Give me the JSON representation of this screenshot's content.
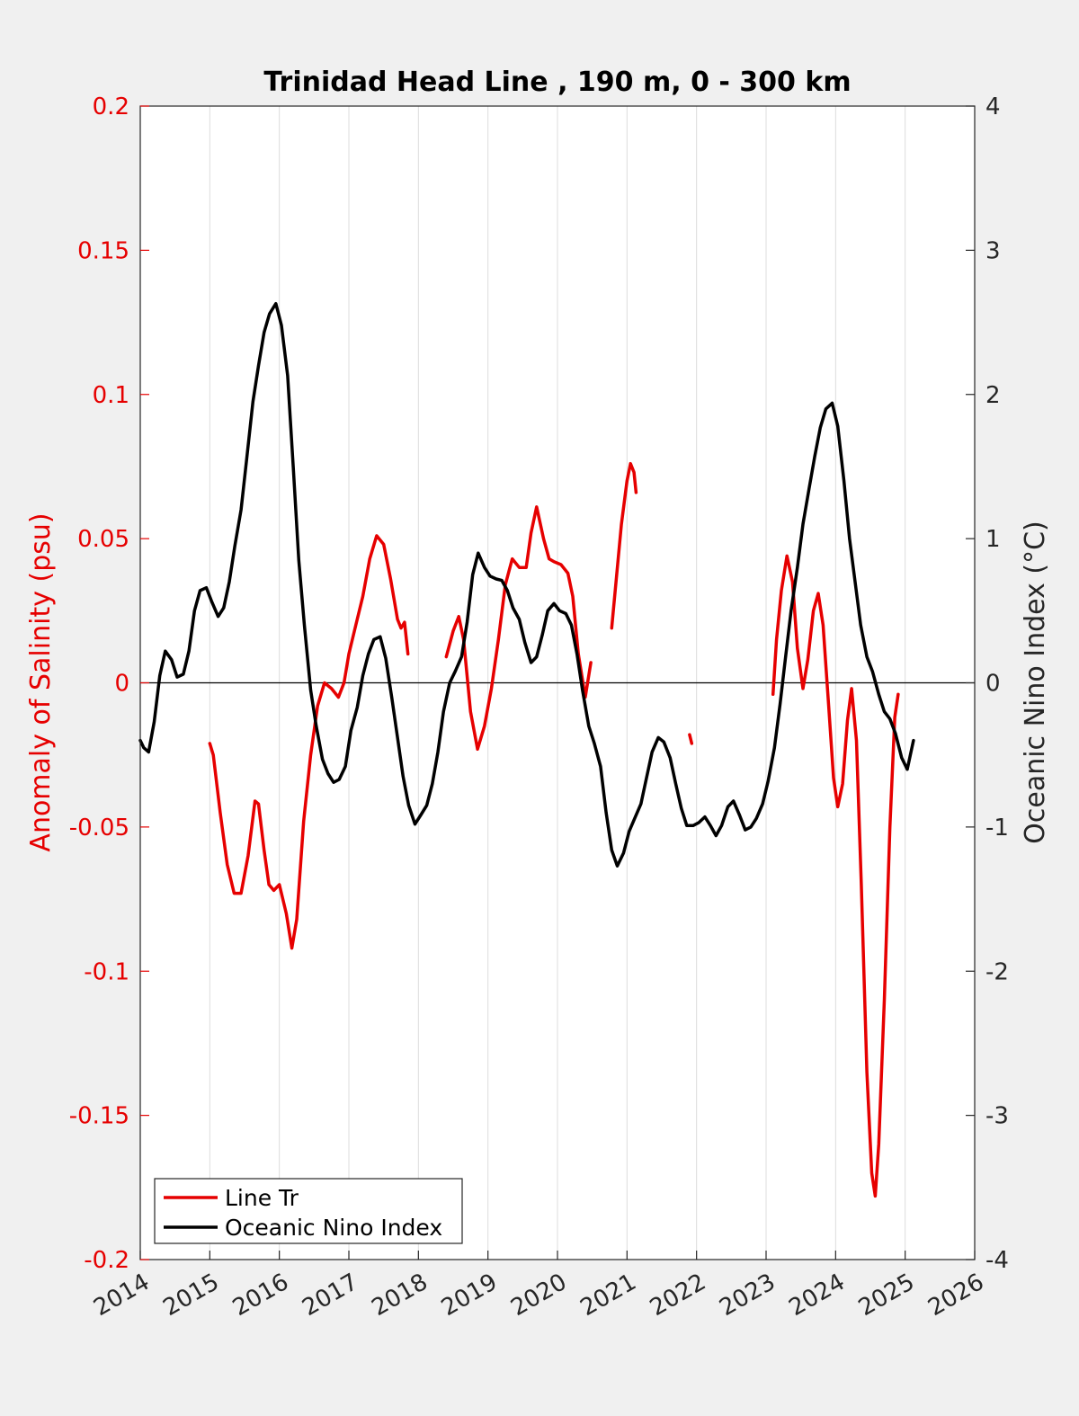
{
  "chart_data": {
    "type": "line",
    "title": "Trinidad Head Line , 190 m, 0 - 300 km",
    "xlabel": "",
    "ylabel_left": "Anomaly of Salinity (psu)",
    "ylabel_right": "Oceanic Nino Index (°C)",
    "xlim": [
      2014,
      2026
    ],
    "ylim_left": [
      -0.2,
      0.2
    ],
    "ylim_right": [
      -4,
      4
    ],
    "x_ticks": [
      "2014",
      "2015",
      "2016",
      "2017",
      "2018",
      "2019",
      "2020",
      "2021",
      "2022",
      "2023",
      "2024",
      "2025",
      "2026"
    ],
    "y_ticks_left": [
      "0.2",
      "0.15",
      "0.1",
      "0.05",
      "0",
      "-0.05",
      "-0.1",
      "-0.15",
      "-0.2"
    ],
    "y_ticks_right": [
      "4",
      "3",
      "2",
      "1",
      "0",
      "-1",
      "-2",
      "-3",
      "-4"
    ],
    "grid": "vertical",
    "legend_position": "bottom-left",
    "colors": {
      "salinity": "#e60000",
      "oni": "#000000",
      "zero_line": "#000000"
    },
    "series": [
      {
        "name": "Line Tr",
        "axis": "left",
        "color": "#e60000",
        "segments": [
          [
            [
              2015.0,
              -0.021
            ],
            [
              2015.05,
              -0.025
            ],
            [
              2015.15,
              -0.045
            ],
            [
              2015.25,
              -0.063
            ],
            [
              2015.35,
              -0.073
            ],
            [
              2015.45,
              -0.073
            ],
            [
              2015.55,
              -0.06
            ],
            [
              2015.65,
              -0.041
            ],
            [
              2015.7,
              -0.042
            ],
            [
              2015.78,
              -0.058
            ],
            [
              2015.85,
              -0.07
            ],
            [
              2015.92,
              -0.072
            ],
            [
              2016.0,
              -0.07
            ],
            [
              2016.1,
              -0.08
            ],
            [
              2016.18,
              -0.092
            ],
            [
              2016.25,
              -0.082
            ],
            [
              2016.35,
              -0.048
            ],
            [
              2016.45,
              -0.025
            ],
            [
              2016.55,
              -0.008
            ],
            [
              2016.65,
              0.0
            ],
            [
              2016.75,
              -0.002
            ],
            [
              2016.85,
              -0.005
            ],
            [
              2016.93,
              0.0
            ],
            [
              2017.0,
              0.01
            ],
            [
              2017.1,
              0.02
            ],
            [
              2017.2,
              0.03
            ],
            [
              2017.3,
              0.043
            ],
            [
              2017.4,
              0.051
            ],
            [
              2017.5,
              0.048
            ],
            [
              2017.6,
              0.036
            ],
            [
              2017.7,
              0.022
            ],
            [
              2017.75,
              0.019
            ],
            [
              2017.8,
              0.021
            ],
            [
              2017.85,
              0.01
            ]
          ],
          [
            [
              2018.4,
              0.009
            ],
            [
              2018.5,
              0.018
            ],
            [
              2018.58,
              0.023
            ],
            [
              2018.65,
              0.015
            ],
            [
              2018.75,
              -0.01
            ],
            [
              2018.85,
              -0.023
            ],
            [
              2018.95,
              -0.015
            ],
            [
              2019.05,
              -0.002
            ],
            [
              2019.15,
              0.015
            ],
            [
              2019.25,
              0.034
            ],
            [
              2019.35,
              0.043
            ],
            [
              2019.45,
              0.04
            ],
            [
              2019.55,
              0.04
            ],
            [
              2019.62,
              0.052
            ],
            [
              2019.7,
              0.061
            ],
            [
              2019.8,
              0.05
            ],
            [
              2019.88,
              0.043
            ],
            [
              2019.95,
              0.042
            ],
            [
              2020.05,
              0.041
            ],
            [
              2020.15,
              0.038
            ],
            [
              2020.22,
              0.03
            ],
            [
              2020.3,
              0.01
            ],
            [
              2020.4,
              -0.005
            ],
            [
              2020.48,
              0.007
            ]
          ],
          [
            [
              2020.78,
              0.019
            ],
            [
              2020.85,
              0.037
            ],
            [
              2020.92,
              0.055
            ],
            [
              2021.0,
              0.07
            ],
            [
              2021.05,
              0.076
            ],
            [
              2021.1,
              0.073
            ],
            [
              2021.13,
              0.066
            ]
          ],
          [
            [
              2021.9,
              -0.018
            ],
            [
              2021.93,
              -0.021
            ]
          ],
          [
            [
              2023.1,
              -0.004
            ],
            [
              2023.15,
              0.015
            ],
            [
              2023.22,
              0.032
            ],
            [
              2023.3,
              0.044
            ],
            [
              2023.38,
              0.035
            ],
            [
              2023.45,
              0.012
            ],
            [
              2023.53,
              -0.002
            ],
            [
              2023.6,
              0.008
            ],
            [
              2023.68,
              0.025
            ],
            [
              2023.75,
              0.031
            ],
            [
              2023.82,
              0.02
            ],
            [
              2023.9,
              -0.008
            ],
            [
              2023.97,
              -0.033
            ],
            [
              2024.03,
              -0.043
            ],
            [
              2024.1,
              -0.035
            ],
            [
              2024.17,
              -0.013
            ],
            [
              2024.23,
              -0.002
            ],
            [
              2024.3,
              -0.02
            ],
            [
              2024.37,
              -0.07
            ],
            [
              2024.45,
              -0.135
            ],
            [
              2024.52,
              -0.17
            ],
            [
              2024.57,
              -0.178
            ],
            [
              2024.62,
              -0.16
            ],
            [
              2024.7,
              -0.11
            ],
            [
              2024.78,
              -0.05
            ],
            [
              2024.85,
              -0.012
            ],
            [
              2024.9,
              -0.004
            ]
          ]
        ]
      },
      {
        "name": "Oceanic Nino Index",
        "axis": "right",
        "color": "#000000",
        "segments": [
          [
            [
              2014.0,
              -0.4
            ],
            [
              2014.05,
              -0.45
            ],
            [
              2014.12,
              -0.48
            ],
            [
              2014.2,
              -0.27
            ],
            [
              2014.28,
              0.05
            ],
            [
              2014.36,
              0.22
            ],
            [
              2014.45,
              0.16
            ],
            [
              2014.53,
              0.04
            ],
            [
              2014.62,
              0.06
            ],
            [
              2014.7,
              0.22
            ],
            [
              2014.78,
              0.5
            ],
            [
              2014.86,
              0.64
            ],
            [
              2014.95,
              0.66
            ],
            [
              2015.03,
              0.56
            ],
            [
              2015.12,
              0.46
            ],
            [
              2015.2,
              0.52
            ],
            [
              2015.28,
              0.7
            ],
            [
              2015.36,
              0.95
            ],
            [
              2015.45,
              1.2
            ],
            [
              2015.53,
              1.55
            ],
            [
              2015.62,
              1.95
            ],
            [
              2015.7,
              2.2
            ],
            [
              2015.78,
              2.43
            ],
            [
              2015.86,
              2.56
            ],
            [
              2015.95,
              2.63
            ],
            [
              2016.03,
              2.48
            ],
            [
              2016.12,
              2.13
            ],
            [
              2016.2,
              1.5
            ],
            [
              2016.28,
              0.85
            ],
            [
              2016.36,
              0.4
            ],
            [
              2016.45,
              -0.05
            ],
            [
              2016.53,
              -0.3
            ],
            [
              2016.62,
              -0.53
            ],
            [
              2016.7,
              -0.63
            ],
            [
              2016.78,
              -0.69
            ],
            [
              2016.86,
              -0.67
            ],
            [
              2016.95,
              -0.58
            ],
            [
              2017.03,
              -0.33
            ],
            [
              2017.12,
              -0.17
            ],
            [
              2017.2,
              0.05
            ],
            [
              2017.28,
              0.2
            ],
            [
              2017.36,
              0.3
            ],
            [
              2017.45,
              0.32
            ],
            [
              2017.53,
              0.17
            ],
            [
              2017.62,
              -0.11
            ],
            [
              2017.7,
              -0.38
            ],
            [
              2017.78,
              -0.65
            ],
            [
              2017.86,
              -0.85
            ],
            [
              2017.95,
              -0.98
            ],
            [
              2018.03,
              -0.92
            ],
            [
              2018.12,
              -0.85
            ],
            [
              2018.2,
              -0.7
            ],
            [
              2018.28,
              -0.48
            ],
            [
              2018.36,
              -0.2
            ],
            [
              2018.45,
              0.0
            ],
            [
              2018.53,
              0.08
            ],
            [
              2018.62,
              0.18
            ],
            [
              2018.7,
              0.42
            ],
            [
              2018.78,
              0.75
            ],
            [
              2018.86,
              0.9
            ],
            [
              2018.95,
              0.8
            ],
            [
              2019.03,
              0.74
            ],
            [
              2019.12,
              0.72
            ],
            [
              2019.2,
              0.71
            ],
            [
              2019.28,
              0.64
            ],
            [
              2019.36,
              0.52
            ],
            [
              2019.45,
              0.44
            ],
            [
              2019.53,
              0.28
            ],
            [
              2019.62,
              0.14
            ],
            [
              2019.7,
              0.18
            ],
            [
              2019.78,
              0.33
            ],
            [
              2019.86,
              0.5
            ],
            [
              2019.95,
              0.55
            ],
            [
              2020.03,
              0.5
            ],
            [
              2020.12,
              0.48
            ],
            [
              2020.2,
              0.4
            ],
            [
              2020.28,
              0.2
            ],
            [
              2020.36,
              -0.05
            ],
            [
              2020.45,
              -0.3
            ],
            [
              2020.53,
              -0.42
            ],
            [
              2020.62,
              -0.58
            ],
            [
              2020.7,
              -0.9
            ],
            [
              2020.78,
              -1.16
            ],
            [
              2020.86,
              -1.27
            ],
            [
              2020.95,
              -1.18
            ],
            [
              2021.03,
              -1.03
            ],
            [
              2021.12,
              -0.93
            ],
            [
              2021.2,
              -0.84
            ],
            [
              2021.28,
              -0.66
            ],
            [
              2021.36,
              -0.48
            ],
            [
              2021.45,
              -0.38
            ],
            [
              2021.53,
              -0.41
            ],
            [
              2021.62,
              -0.52
            ],
            [
              2021.7,
              -0.7
            ],
            [
              2021.78,
              -0.87
            ],
            [
              2021.86,
              -0.99
            ],
            [
              2021.95,
              -0.99
            ],
            [
              2022.03,
              -0.97
            ],
            [
              2022.12,
              -0.93
            ],
            [
              2022.2,
              -0.99
            ],
            [
              2022.28,
              -1.06
            ],
            [
              2022.36,
              -0.99
            ],
            [
              2022.45,
              -0.86
            ],
            [
              2022.53,
              -0.82
            ],
            [
              2022.62,
              -0.92
            ],
            [
              2022.7,
              -1.02
            ],
            [
              2022.78,
              -1.0
            ],
            [
              2022.86,
              -0.94
            ],
            [
              2022.95,
              -0.84
            ],
            [
              2023.03,
              -0.68
            ],
            [
              2023.12,
              -0.45
            ],
            [
              2023.2,
              -0.15
            ],
            [
              2023.28,
              0.18
            ],
            [
              2023.36,
              0.5
            ],
            [
              2023.45,
              0.8
            ],
            [
              2023.53,
              1.1
            ],
            [
              2023.62,
              1.35
            ],
            [
              2023.7,
              1.57
            ],
            [
              2023.78,
              1.77
            ],
            [
              2023.86,
              1.9
            ],
            [
              2023.95,
              1.94
            ],
            [
              2024.03,
              1.78
            ],
            [
              2024.12,
              1.4
            ],
            [
              2024.2,
              1.0
            ],
            [
              2024.28,
              0.7
            ],
            [
              2024.36,
              0.4
            ],
            [
              2024.45,
              0.18
            ],
            [
              2024.53,
              0.08
            ],
            [
              2024.62,
              -0.08
            ],
            [
              2024.7,
              -0.2
            ],
            [
              2024.78,
              -0.25
            ],
            [
              2024.86,
              -0.35
            ],
            [
              2024.95,
              -0.52
            ],
            [
              2025.03,
              -0.6
            ],
            [
              2025.12,
              -0.4
            ]
          ]
        ]
      }
    ]
  }
}
